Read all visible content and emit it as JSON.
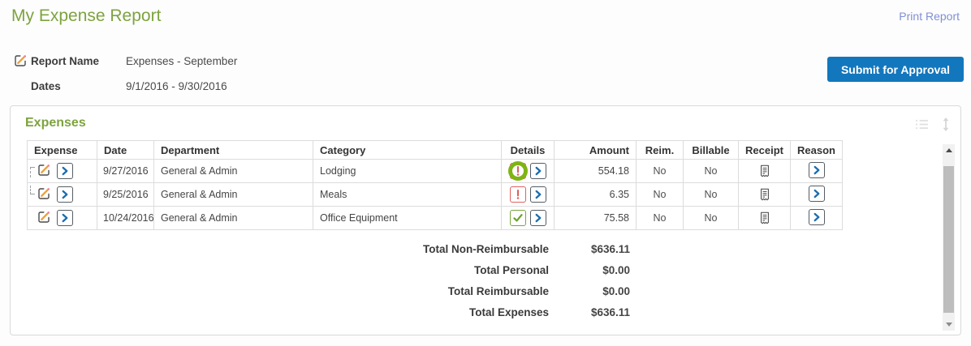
{
  "page": {
    "title": "My Expense Report",
    "print_link": "Print Report"
  },
  "report": {
    "name_label": "Report Name",
    "name_value": "Expenses - September",
    "dates_label": "Dates",
    "dates_value": "9/1/2016 - 9/30/2016",
    "submit_button": "Submit for Approval"
  },
  "expenses": {
    "section_title": "Expenses",
    "columns": [
      "Expense",
      "Date",
      "Department",
      "Category",
      "Details",
      "Amount",
      "Reim.",
      "Billable",
      "Receipt",
      "Reason"
    ],
    "rows": [
      {
        "date": "9/27/2016",
        "department": "General & Admin",
        "category": "Lodging",
        "details_status": "warning",
        "amount": "554.18",
        "reim": "No",
        "billable": "No",
        "connector": "top",
        "highlighted": true
      },
      {
        "date": "9/25/2016",
        "department": "General & Admin",
        "category": "Meals",
        "details_status": "warning",
        "amount": "6.35",
        "reim": "No",
        "billable": "No",
        "connector": "bottom",
        "highlighted": false
      },
      {
        "date": "10/24/2016",
        "department": "General & Admin",
        "category": "Office Equipment",
        "details_status": "ok",
        "amount": "75.58",
        "reim": "No",
        "billable": "No",
        "connector": "none",
        "highlighted": false
      }
    ],
    "totals": [
      {
        "label": "Total Non-Reimbursable",
        "value": "$636.11"
      },
      {
        "label": "Total Personal",
        "value": "$0.00"
      },
      {
        "label": "Total Reimbursable",
        "value": "$0.00"
      },
      {
        "label": "Total Expenses",
        "value": "$636.11"
      }
    ]
  },
  "icons": {
    "edit": "pencil-icon",
    "open": "chevron-right-icon",
    "warning": "exclamation-icon",
    "ok": "check-icon",
    "receipt": "receipt-icon",
    "list": "list-icon",
    "resize": "vertical-resize-icon"
  },
  "colors": {
    "title_green": "#7da33f",
    "link_blue": "#8090d5",
    "button_blue": "#1377bd",
    "warning_red": "#e06060",
    "ok_green": "#79a73e",
    "chevron_blue": "#1b6eb0",
    "highlight_ring_green": "#7fb414",
    "pencil_orange": "#eca13c"
  }
}
